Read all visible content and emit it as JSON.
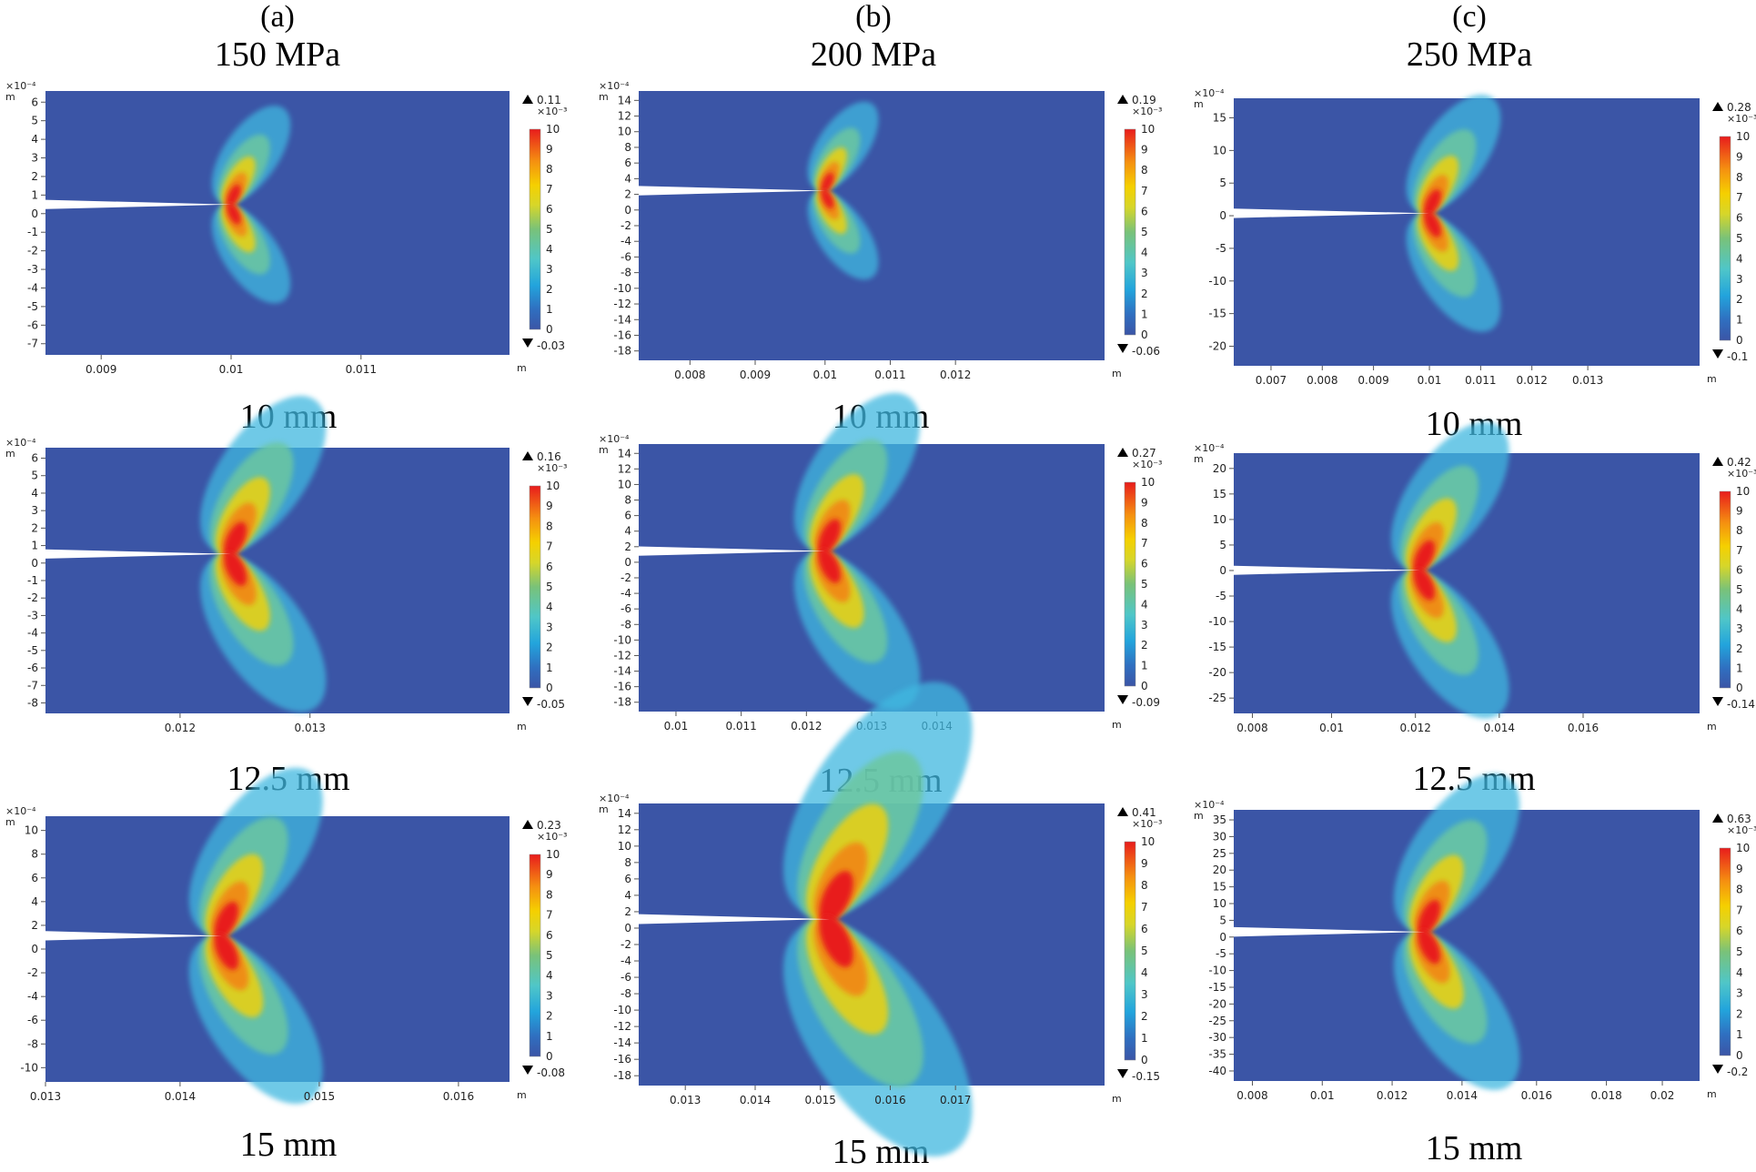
{
  "figure": {
    "columns": [
      {
        "label": "(a)",
        "pressure": "150 MPa"
      },
      {
        "label": "(b)",
        "pressure": "200 MPa"
      },
      {
        "label": "(c)",
        "pressure": "250 MPa"
      }
    ],
    "colors": {
      "background": "#3b55a6",
      "crack": "#ffffff"
    }
  },
  "chart_data": [
    {
      "type": "heatmap",
      "column": "150 MPa",
      "caption": "10 mm",
      "x_ticks": [
        "0.009",
        "0.01",
        "0.011"
      ],
      "x_unit": "m",
      "y_ticks": [
        "6",
        "5",
        "4",
        "3",
        "2",
        "1",
        "0",
        "-1",
        "-2",
        "-3",
        "-4",
        "-5",
        "-6",
        "-7"
      ],
      "y_scale": "×10⁻⁴",
      "y_unit": "m",
      "colorbar_max": "0.11",
      "colorbar_min": "-0.03",
      "colorbar_scale": "×10⁻³",
      "colorbar_ticks": [
        "10",
        "9",
        "8",
        "7",
        "6",
        "5",
        "4",
        "3",
        "2",
        "1",
        "0"
      ]
    },
    {
      "type": "heatmap",
      "column": "150 MPa",
      "caption": "12.5 mm",
      "x_ticks": [
        "0.012",
        "0.013"
      ],
      "x_unit": "m",
      "y_ticks": [
        "6",
        "5",
        "4",
        "3",
        "2",
        "1",
        "0",
        "-1",
        "-2",
        "-3",
        "-4",
        "-5",
        "-6",
        "-7",
        "-8"
      ],
      "y_scale": "×10⁻⁴",
      "y_unit": "m",
      "colorbar_max": "0.16",
      "colorbar_min": "-0.05",
      "colorbar_scale": "×10⁻³",
      "colorbar_ticks": [
        "10",
        "9",
        "8",
        "7",
        "6",
        "5",
        "4",
        "3",
        "2",
        "1",
        "0"
      ]
    },
    {
      "type": "heatmap",
      "column": "150 MPa",
      "caption": "15 mm",
      "x_ticks": [
        "0.013",
        "0.014",
        "0.015",
        "0.016"
      ],
      "x_unit": "m",
      "y_ticks": [
        "10",
        "8",
        "6",
        "4",
        "2",
        "0",
        "-2",
        "-4",
        "-6",
        "-8",
        "-10"
      ],
      "y_scale": "×10⁻⁴",
      "y_unit": "m",
      "colorbar_max": "0.23",
      "colorbar_min": "-0.08",
      "colorbar_scale": "×10⁻³",
      "colorbar_ticks": [
        "10",
        "9",
        "8",
        "7",
        "6",
        "5",
        "4",
        "3",
        "2",
        "1",
        "0"
      ]
    },
    {
      "type": "heatmap",
      "column": "200 MPa",
      "caption": "10 mm",
      "x_ticks": [
        "0.008",
        "0.009",
        "0.01",
        "0.011",
        "0.012"
      ],
      "x_unit": "m",
      "y_ticks": [
        "14",
        "12",
        "10",
        "8",
        "6",
        "4",
        "2",
        "0",
        "-2",
        "-4",
        "-6",
        "-8",
        "-10",
        "-12",
        "-14",
        "-16",
        "-18"
      ],
      "y_scale": "×10⁻⁴",
      "y_unit": "m",
      "colorbar_max": "0.19",
      "colorbar_min": "-0.06",
      "colorbar_scale": "×10⁻³",
      "colorbar_ticks": [
        "10",
        "9",
        "8",
        "7",
        "6",
        "5",
        "4",
        "3",
        "2",
        "1",
        "0"
      ]
    },
    {
      "type": "heatmap",
      "column": "200 MPa",
      "caption": "12.5 mm",
      "x_ticks": [
        "0.01",
        "0.011",
        "0.012",
        "0.013",
        "0.014"
      ],
      "x_unit": "m",
      "y_ticks": [
        "14",
        "12",
        "10",
        "8",
        "6",
        "4",
        "2",
        "0",
        "-2",
        "-4",
        "-6",
        "-8",
        "-10",
        "-12",
        "-14",
        "-16",
        "-18"
      ],
      "y_scale": "×10⁻⁴",
      "y_unit": "m",
      "colorbar_max": "0.27",
      "colorbar_min": "-0.09",
      "colorbar_scale": "×10⁻³",
      "colorbar_ticks": [
        "10",
        "9",
        "8",
        "7",
        "6",
        "5",
        "4",
        "3",
        "2",
        "1",
        "0"
      ]
    },
    {
      "type": "heatmap",
      "column": "200 MPa",
      "caption": "15 mm",
      "x_ticks": [
        "0.013",
        "0.014",
        "0.015",
        "0.016",
        "0.017"
      ],
      "x_unit": "m",
      "y_ticks": [
        "14",
        "12",
        "10",
        "8",
        "6",
        "4",
        "2",
        "0",
        "-2",
        "-4",
        "-6",
        "-8",
        "-10",
        "-12",
        "-14",
        "-16",
        "-18"
      ],
      "y_scale": "×10⁻⁴",
      "y_unit": "m",
      "colorbar_max": "0.41",
      "colorbar_min": "-0.15",
      "colorbar_scale": "×10⁻³",
      "colorbar_ticks": [
        "10",
        "9",
        "8",
        "7",
        "6",
        "5",
        "4",
        "3",
        "2",
        "1",
        "0"
      ]
    },
    {
      "type": "heatmap",
      "column": "250 MPa",
      "caption": "10 mm",
      "x_ticks": [
        "0.007",
        "0.008",
        "0.009",
        "0.01",
        "0.011",
        "0.012",
        "0.013"
      ],
      "x_unit": "m",
      "y_ticks": [
        "15",
        "10",
        "5",
        "0",
        "-5",
        "-10",
        "-15",
        "-20"
      ],
      "y_scale": "×10⁻⁴",
      "y_unit": "m",
      "colorbar_max": "0.28",
      "colorbar_min": "-0.1",
      "colorbar_scale": "×10⁻³",
      "colorbar_ticks": [
        "10",
        "9",
        "8",
        "7",
        "6",
        "5",
        "4",
        "3",
        "2",
        "1",
        "0"
      ]
    },
    {
      "type": "heatmap",
      "column": "250 MPa",
      "caption": "12.5 mm",
      "x_ticks": [
        "0.008",
        "0.01",
        "0.012",
        "0.014",
        "0.016"
      ],
      "x_unit": "m",
      "y_ticks": [
        "20",
        "15",
        "10",
        "5",
        "0",
        "-5",
        "-10",
        "-15",
        "-20",
        "-25"
      ],
      "y_scale": "×10⁻⁴",
      "y_unit": "m",
      "colorbar_max": "0.42",
      "colorbar_min": "-0.14",
      "colorbar_scale": "×10⁻³",
      "colorbar_ticks": [
        "10",
        "9",
        "8",
        "7",
        "6",
        "5",
        "4",
        "3",
        "2",
        "1",
        "0"
      ]
    },
    {
      "type": "heatmap",
      "column": "250 MPa",
      "caption": "15 mm",
      "x_ticks": [
        "0.008",
        "0.01",
        "0.012",
        "0.014",
        "0.016",
        "0.018",
        "0.02"
      ],
      "x_unit": "m",
      "y_ticks": [
        "35",
        "30",
        "25",
        "20",
        "15",
        "10",
        "5",
        "0",
        "-5",
        "-10",
        "-15",
        "-20",
        "-25",
        "-30",
        "-35",
        "-40"
      ],
      "y_scale": "×10⁻⁴",
      "y_unit": "m",
      "colorbar_max": "0.63",
      "colorbar_min": "-0.2",
      "colorbar_scale": "×10⁻³",
      "colorbar_ticks": [
        "10",
        "9",
        "8",
        "7",
        "6",
        "5",
        "4",
        "3",
        "2",
        "1",
        "0"
      ]
    }
  ]
}
